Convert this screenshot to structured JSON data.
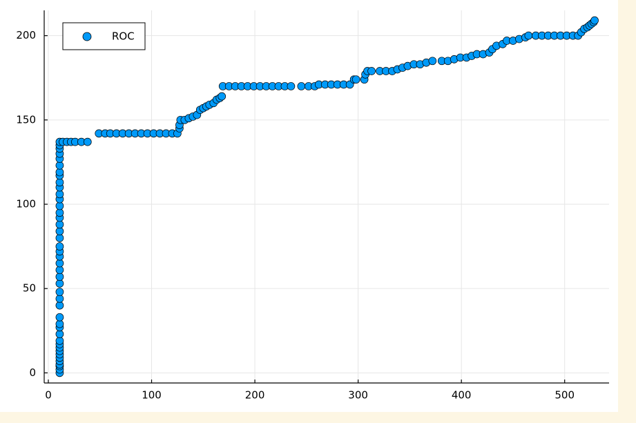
{
  "chart_data": {
    "type": "scatter",
    "x": [
      11,
      11,
      11,
      11,
      11,
      11,
      11,
      11,
      11,
      11,
      11,
      11,
      11,
      11,
      11,
      11,
      11,
      11,
      11,
      11,
      11,
      11,
      11,
      11,
      11,
      11,
      11,
      11,
      11,
      11,
      11,
      11,
      11,
      11,
      11,
      11,
      11,
      11,
      11,
      11,
      11,
      11,
      11,
      14,
      18,
      22,
      26,
      32,
      38,
      49,
      55,
      60,
      66,
      72,
      78,
      84,
      90,
      96,
      102,
      108,
      114,
      120,
      125,
      127,
      127,
      128,
      132,
      136,
      140,
      144,
      147,
      150,
      153,
      156,
      160,
      163,
      166,
      168,
      169,
      175,
      181,
      187,
      193,
      199,
      205,
      211,
      217,
      223,
      229,
      235,
      245,
      252,
      258,
      262,
      268,
      274,
      280,
      286,
      292,
      296,
      298,
      306,
      307,
      309,
      313,
      321,
      327,
      333,
      338,
      343,
      348,
      354,
      360,
      366,
      372,
      381,
      387,
      393,
      399,
      405,
      410,
      415,
      421,
      427,
      430,
      434,
      440,
      444,
      450,
      456,
      462,
      465,
      472,
      478,
      484,
      490,
      496,
      502,
      508,
      513,
      516,
      519,
      522,
      524,
      526,
      528,
      529
    ],
    "series": [
      {
        "name": "ROC",
        "color": "#009af9",
        "values": [
          0,
          2,
          4,
          5,
          7,
          9,
          11,
          13,
          15,
          17,
          19,
          23,
          27,
          29,
          33,
          40,
          44,
          48,
          53,
          57,
          61,
          65,
          69,
          72,
          75,
          80,
          84,
          88,
          92,
          95,
          99,
          103,
          106,
          110,
          113,
          117,
          119,
          123,
          127,
          130,
          133,
          135,
          137,
          137,
          137,
          137,
          137,
          137,
          137,
          142,
          142,
          142,
          142,
          142,
          142,
          142,
          142,
          142,
          142,
          142,
          142,
          142,
          142,
          145,
          147,
          150,
          150,
          151,
          152,
          153,
          156,
          157,
          158,
          159,
          160,
          162,
          163,
          164,
          170,
          170,
          170,
          170,
          170,
          170,
          170,
          170,
          170,
          170,
          170,
          170,
          170,
          170,
          170,
          171,
          171,
          171,
          171,
          171,
          171,
          174,
          174,
          174,
          177,
          179,
          179,
          179,
          179,
          179,
          180,
          181,
          182,
          183,
          183,
          184,
          185,
          185,
          185,
          186,
          187,
          187,
          188,
          189,
          189,
          190,
          192,
          194,
          195,
          197,
          197,
          198,
          199,
          200,
          200,
          200,
          200,
          200,
          200,
          200,
          200,
          200,
          202,
          204,
          205,
          206,
          207,
          208,
          209
        ]
      }
    ],
    "xlim": [
      -4,
      543
    ],
    "ylim": [
      -6,
      215
    ],
    "xticks": [
      0,
      100,
      200,
      300,
      400,
      500
    ],
    "yticks": [
      0,
      50,
      100,
      150,
      200
    ],
    "grid": true,
    "legend": "top-left"
  }
}
